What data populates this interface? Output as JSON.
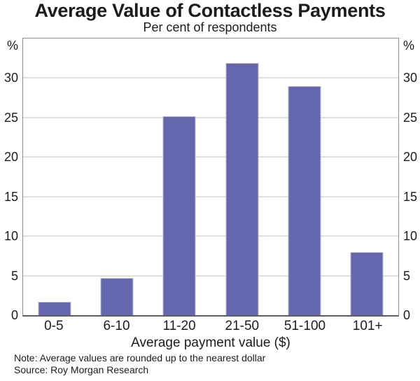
{
  "header": {
    "title": "Average Value of Contactless Payments",
    "subtitle": "Per cent of respondents"
  },
  "chart_data": {
    "type": "bar",
    "title": "Average Value of Contactless Payments",
    "subtitle": "Per cent of respondents",
    "categories": [
      "0-5",
      "6-10",
      "11-20",
      "21-50",
      "51-100",
      "101+"
    ],
    "values": [
      1.7,
      4.7,
      25.2,
      31.9,
      29.0,
      8.0
    ],
    "xlabel": "Average payment value ($)",
    "unit": "%",
    "yticks": [
      0,
      5,
      10,
      15,
      20,
      25,
      30
    ],
    "ylim": [
      0,
      35
    ],
    "grid": "horizontal",
    "legend": "none",
    "colors": {
      "bar": "#6467AD",
      "bar_edge": "#b7b8d7",
      "gridline": "#e0e0e0",
      "axis_frame": "#8c8c8c",
      "axis_bottom": "#5f5f5f",
      "text": "#1c1c1c"
    }
  },
  "footer": {
    "note": "Note: Average values are rounded up to the nearest dollar",
    "source": "Source: Roy Morgan Research"
  }
}
